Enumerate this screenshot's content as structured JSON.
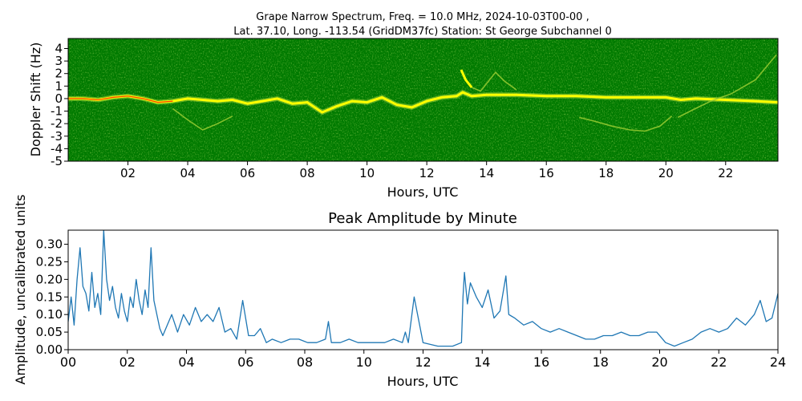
{
  "figure": {
    "title_line1": "Grape Narrow Spectrum, Freq. = 10.0 MHz, 2024-10-03T00-00 ,",
    "title_line2": "Lat.  37.10, Long. -113.54 (GridDM37fc) Station: St George Subchannel 0"
  },
  "chart_data": [
    {
      "type": "heatmap",
      "title": "",
      "xlabel": "Hours, UTC",
      "ylabel": "Doppler Shift (Hz)",
      "xlim": [
        0,
        23.75
      ],
      "ylim": [
        -5,
        4.8
      ],
      "x_ticks": [
        "02",
        "04",
        "06",
        "08",
        "10",
        "12",
        "14",
        "16",
        "18",
        "20",
        "22"
      ],
      "x_tick_values": [
        2,
        4,
        6,
        8,
        10,
        12,
        14,
        16,
        18,
        20,
        22
      ],
      "y_ticks": [
        "4",
        "3",
        "2",
        "1",
        "0",
        "-1",
        "-2",
        "-3",
        "-4",
        "-5"
      ],
      "y_tick_values": [
        4,
        3,
        2,
        1,
        0,
        -1,
        -2,
        -3,
        -4,
        -5
      ],
      "colors": {
        "background": "#007a00",
        "signal_weak": "#9acd32",
        "signal": "#ffff00",
        "signal_peak": "#ff4000"
      },
      "carrier_trace": {
        "x": [
          0,
          0.5,
          1,
          1.5,
          2,
          2.5,
          3,
          3.5,
          4,
          4.5,
          5,
          5.5,
          6,
          6.5,
          7,
          7.5,
          8,
          8.5,
          9,
          9.5,
          10,
          10.5,
          11,
          11.5,
          12,
          12.5,
          13,
          13.2,
          13.5,
          14,
          15,
          16,
          17,
          18,
          19,
          20,
          20.5,
          21,
          22,
          23,
          23.75
        ],
        "y": [
          0,
          0,
          -0.1,
          0.1,
          0.2,
          0,
          -0.3,
          -0.2,
          0,
          -0.1,
          -0.2,
          -0.1,
          -0.4,
          -0.2,
          0,
          -0.4,
          -0.3,
          -1.1,
          -0.6,
          -0.2,
          -0.3,
          0.1,
          -0.5,
          -0.7,
          -0.2,
          0.1,
          0.2,
          0.5,
          0.2,
          0.3,
          0.3,
          0.2,
          0.2,
          0.1,
          0.1,
          0.1,
          -0.1,
          0,
          -0.1,
          -0.2,
          -0.3
        ]
      },
      "secondary_traces": [
        {
          "x": [
            13.15,
            13.3,
            13.5,
            13.8,
            14.1,
            14.3,
            14.6,
            15
          ],
          "y": [
            2.3,
            1.5,
            0.9,
            0.6,
            1.5,
            2.1,
            1.4,
            0.7
          ]
        },
        {
          "x": [
            17.1,
            17.6,
            18.2,
            18.8,
            19.3,
            19.8,
            20.2
          ],
          "y": [
            -1.5,
            -1.8,
            -2.2,
            -2.5,
            -2.6,
            -2.2,
            -1.4
          ]
        },
        {
          "x": [
            20.4,
            20.9,
            21.5,
            22.2,
            23,
            23.7
          ],
          "y": [
            -1.5,
            -0.9,
            -0.2,
            0.4,
            1.5,
            3.5
          ]
        },
        {
          "x": [
            3.5,
            4,
            4.5,
            5,
            5.5
          ],
          "y": [
            -0.8,
            -1.7,
            -2.5,
            -2,
            -1.4
          ]
        }
      ]
    },
    {
      "type": "line",
      "title": "Peak Amplitude by Minute",
      "xlabel": "Hours, UTC",
      "ylabel": "Amplitude, uncalibrated units",
      "xlim": [
        0,
        24
      ],
      "ylim": [
        0,
        0.34
      ],
      "x_ticks": [
        "00",
        "02",
        "04",
        "06",
        "08",
        "10",
        "12",
        "14",
        "16",
        "18",
        "20",
        "22",
        "24"
      ],
      "x_tick_values": [
        0,
        2,
        4,
        6,
        8,
        10,
        12,
        14,
        16,
        18,
        20,
        22,
        24
      ],
      "y_ticks": [
        "0.00",
        "0.05",
        "0.10",
        "0.15",
        "0.20",
        "0.25",
        "0.30"
      ],
      "y_tick_values": [
        0,
        0.05,
        0.1,
        0.15,
        0.2,
        0.25,
        0.3
      ],
      "line_color": "#1f77b4",
      "series": [
        {
          "x": [
            0,
            0.1,
            0.2,
            0.3,
            0.4,
            0.5,
            0.6,
            0.7,
            0.8,
            0.9,
            1,
            1.1,
            1.2,
            1.3,
            1.4,
            1.5,
            1.6,
            1.7,
            1.8,
            1.9,
            2,
            2.1,
            2.2,
            2.3,
            2.4,
            2.5,
            2.6,
            2.7,
            2.8,
            2.9,
            3,
            3.1,
            3.2,
            3.3,
            3.5,
            3.7,
            3.9,
            4.1,
            4.3,
            4.5,
            4.7,
            4.9,
            5.1,
            5.3,
            5.5,
            5.7,
            5.9,
            6.1,
            6.3,
            6.5,
            6.7,
            6.9,
            7.2,
            7.5,
            7.8,
            8.1,
            8.4,
            8.7,
            8.8,
            8.9,
            9.2,
            9.5,
            9.8,
            10.1,
            10.4,
            10.7,
            11,
            11.3,
            11.4,
            11.5,
            11.7,
            12,
            12.5,
            13,
            13.3,
            13.35,
            13.4,
            13.5,
            13.6,
            13.8,
            14,
            14.2,
            14.4,
            14.6,
            14.8,
            14.9,
            15.1,
            15.4,
            15.7,
            16,
            16.3,
            16.6,
            16.9,
            17.2,
            17.5,
            17.8,
            18.1,
            18.4,
            18.7,
            19,
            19.3,
            19.6,
            19.9,
            20.2,
            20.5,
            20.8,
            21.1,
            21.4,
            21.7,
            22,
            22.3,
            22.6,
            22.9,
            23.2,
            23.4,
            23.6,
            23.8,
            24
          ],
          "y": [
            0.08,
            0.15,
            0.07,
            0.2,
            0.29,
            0.18,
            0.16,
            0.11,
            0.22,
            0.12,
            0.16,
            0.1,
            0.34,
            0.2,
            0.14,
            0.18,
            0.12,
            0.09,
            0.16,
            0.11,
            0.08,
            0.15,
            0.12,
            0.2,
            0.14,
            0.1,
            0.17,
            0.12,
            0.29,
            0.14,
            0.1,
            0.06,
            0.04,
            0.06,
            0.1,
            0.05,
            0.1,
            0.07,
            0.12,
            0.08,
            0.1,
            0.08,
            0.12,
            0.05,
            0.06,
            0.03,
            0.14,
            0.04,
            0.04,
            0.06,
            0.02,
            0.03,
            0.02,
            0.03,
            0.03,
            0.02,
            0.02,
            0.03,
            0.08,
            0.02,
            0.02,
            0.03,
            0.02,
            0.02,
            0.02,
            0.02,
            0.03,
            0.02,
            0.05,
            0.02,
            0.15,
            0.02,
            0.01,
            0.01,
            0.02,
            0.15,
            0.22,
            0.13,
            0.19,
            0.15,
            0.12,
            0.17,
            0.09,
            0.11,
            0.21,
            0.1,
            0.09,
            0.07,
            0.08,
            0.06,
            0.05,
            0.06,
            0.05,
            0.04,
            0.03,
            0.03,
            0.04,
            0.04,
            0.05,
            0.04,
            0.04,
            0.05,
            0.05,
            0.02,
            0.01,
            0.02,
            0.03,
            0.05,
            0.06,
            0.05,
            0.06,
            0.09,
            0.07,
            0.1,
            0.14,
            0.08,
            0.09,
            0.16
          ]
        }
      ]
    }
  ]
}
